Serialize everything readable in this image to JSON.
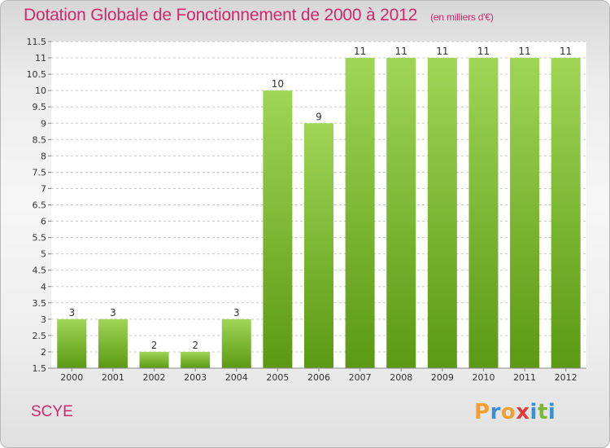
{
  "title": "Dotation Globale de Fonctionnement de 2000 à 2012",
  "unit_note": "(en milliers d'€)",
  "commune": "SCYE",
  "logo": {
    "text": "Proxiti",
    "letters": [
      {
        "ch": "P",
        "color": "#f0a030"
      },
      {
        "ch": "r",
        "color": "#3a8fd0"
      },
      {
        "ch": "o",
        "color": "#f0a030"
      },
      {
        "ch": "x",
        "color": "#e23b3b"
      },
      {
        "ch": "i",
        "color": "#3a8fd0"
      },
      {
        "ch": "t",
        "color": "#78b832"
      },
      {
        "ch": "i",
        "color": "#3a8fd0"
      }
    ]
  },
  "colors": {
    "bar_top": "#9fd655",
    "bar_bottom": "#5b9914",
    "grid": "#c8c8c8",
    "accent": "#cc2a6b",
    "axis": "#888888",
    "text": "#333333"
  },
  "chart_data": {
    "type": "bar",
    "categories": [
      "2000",
      "2001",
      "2002",
      "2003",
      "2004",
      "2005",
      "2006",
      "2007",
      "2008",
      "2009",
      "2010",
      "2011",
      "2012"
    ],
    "values": [
      3,
      3,
      2,
      2,
      3,
      10,
      9,
      11,
      11,
      11,
      11,
      11,
      11
    ],
    "value_labels": [
      "3",
      "3",
      "2",
      "2",
      "3",
      "10",
      "9",
      "11",
      "11",
      "11",
      "11",
      "11",
      "11"
    ],
    "ylim": [
      1.5,
      11.5
    ],
    "yticks": [
      1.5,
      2,
      2.5,
      3,
      3.5,
      4,
      4.5,
      5,
      5.5,
      6,
      6.5,
      7,
      7.5,
      8,
      8.5,
      9,
      9.5,
      10,
      10.5,
      11,
      11.5
    ],
    "ytick_labels": [
      "1.5",
      "2",
      "2.5",
      "3",
      "3.5",
      "4",
      "4.5",
      "5",
      "5.5",
      "6",
      "6.5",
      "7",
      "7.5",
      "8",
      "8.5",
      "9",
      "9.5",
      "10",
      "10.5",
      "11",
      "11.5"
    ],
    "grid": true,
    "xlabel": "",
    "ylabel": ""
  }
}
